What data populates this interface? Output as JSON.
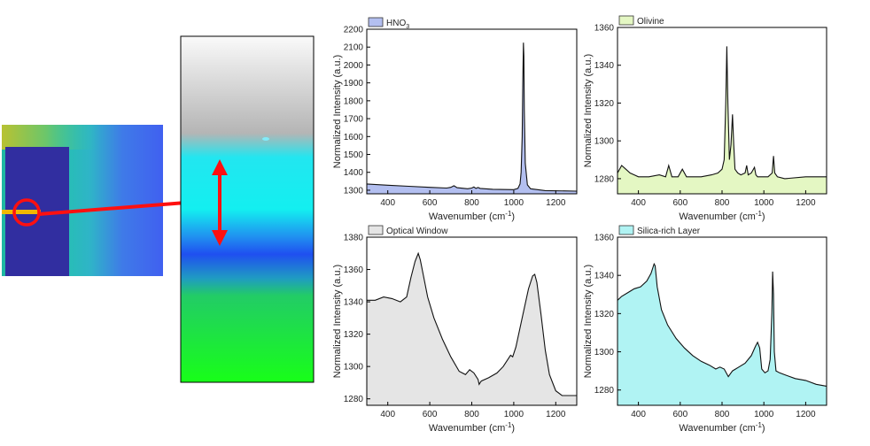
{
  "chart_data": [
    {
      "type": "area",
      "legend": "HNO3",
      "legend_main": "HNO",
      "legend_sub": "3",
      "color": "#b3bff0",
      "xlabel_main": "Wavenumber (cm",
      "xlabel_sup": "-1",
      "xlabel_end": ")",
      "ylabel": "Normalized Intensity (a.u.)",
      "xlim": [
        300,
        1300
      ],
      "ylim": [
        1280,
        2200
      ],
      "xticks": [
        400,
        600,
        800,
        1000,
        1200
      ],
      "yticks": [
        1300,
        1400,
        1500,
        1600,
        1700,
        1800,
        1900,
        2000,
        2100,
        2200
      ],
      "x": [
        300,
        400,
        500,
        600,
        680,
        700,
        715,
        730,
        780,
        800,
        810,
        820,
        830,
        840,
        900,
        1000,
        1020,
        1030,
        1035,
        1040,
        1043,
        1046,
        1048,
        1050,
        1055,
        1065,
        1080,
        1150,
        1300
      ],
      "y": [
        1335,
        1328,
        1322,
        1316,
        1312,
        1316,
        1325,
        1314,
        1308,
        1312,
        1318,
        1310,
        1315,
        1310,
        1305,
        1303,
        1310,
        1335,
        1400,
        1600,
        1900,
        2125,
        2050,
        1750,
        1450,
        1330,
        1308,
        1298,
        1295
      ]
    },
    {
      "type": "area",
      "legend": "Olivine",
      "legend_main": "Olivine",
      "legend_sub": "",
      "color": "#e4f7c3",
      "xlabel_main": "Wavenumber (cm",
      "xlabel_sup": "-1",
      "xlabel_end": ")",
      "ylabel": "Normalized Intensity (a.u.)",
      "xlim": [
        300,
        1300
      ],
      "ylim": [
        1272,
        1360
      ],
      "xticks": [
        400,
        600,
        800,
        1000,
        1200
      ],
      "yticks": [
        1280,
        1300,
        1320,
        1340,
        1360
      ],
      "x": [
        300,
        320,
        340,
        360,
        380,
        400,
        450,
        500,
        530,
        545,
        560,
        590,
        610,
        630,
        700,
        750,
        780,
        800,
        810,
        818,
        823,
        828,
        835,
        843,
        850,
        856,
        862,
        875,
        890,
        910,
        918,
        925,
        940,
        955,
        962,
        970,
        990,
        1020,
        1040,
        1046,
        1052,
        1065,
        1100,
        1200,
        1300
      ],
      "y": [
        1283,
        1287,
        1285,
        1283,
        1282,
        1281,
        1281,
        1282,
        1281,
        1287,
        1281,
        1281,
        1285,
        1281,
        1281,
        1282,
        1283,
        1285,
        1290,
        1320,
        1350,
        1320,
        1290,
        1298,
        1314,
        1298,
        1285,
        1283,
        1282,
        1283,
        1287,
        1282,
        1283,
        1286,
        1282,
        1281,
        1281,
        1281,
        1283,
        1292,
        1283,
        1281,
        1280,
        1281,
        1281
      ]
    },
    {
      "type": "area",
      "legend": "Optical Window",
      "legend_main": "Optical Window",
      "legend_sub": "",
      "color": "#e5e5e5",
      "xlabel_main": "Wavenumber (cm",
      "xlabel_sup": "-1",
      "xlabel_end": ")",
      "ylabel": "Normalized Intensity (a.u.)",
      "xlim": [
        300,
        1300
      ],
      "ylim": [
        1276,
        1380
      ],
      "xticks": [
        400,
        600,
        800,
        1000,
        1200
      ],
      "yticks": [
        1280,
        1300,
        1320,
        1340,
        1360,
        1380
      ],
      "x": [
        300,
        340,
        380,
        420,
        460,
        490,
        510,
        530,
        545,
        555,
        570,
        590,
        620,
        660,
        700,
        740,
        770,
        790,
        810,
        830,
        835,
        845,
        880,
        920,
        950,
        970,
        985,
        995,
        1010,
        1040,
        1070,
        1090,
        1100,
        1110,
        1130,
        1150,
        1170,
        1200,
        1230,
        1260,
        1300
      ],
      "y": [
        1341,
        1341,
        1343,
        1342,
        1340,
        1343,
        1355,
        1365,
        1370,
        1366,
        1356,
        1343,
        1330,
        1317,
        1306,
        1297,
        1295,
        1298,
        1296,
        1292,
        1289,
        1291,
        1293,
        1296,
        1300,
        1304,
        1307,
        1306,
        1312,
        1330,
        1348,
        1356,
        1357,
        1352,
        1332,
        1310,
        1295,
        1285,
        1282,
        1282,
        1282
      ]
    },
    {
      "type": "area",
      "legend": "Silica-rich Layer",
      "legend_main": "Silica-rich Layer",
      "legend_sub": "",
      "color": "#b0f3f3",
      "xlabel_main": "Wavenumber (cm",
      "xlabel_sup": "-1",
      "xlabel_end": ")",
      "ylabel": "Normalized Intensity (a.u.)",
      "xlim": [
        300,
        1300
      ],
      "ylim": [
        1272,
        1360
      ],
      "xticks": [
        400,
        600,
        800,
        1000,
        1200
      ],
      "yticks": [
        1280,
        1300,
        1320,
        1340,
        1360
      ],
      "x": [
        300,
        320,
        350,
        380,
        410,
        440,
        460,
        475,
        480,
        490,
        510,
        540,
        580,
        620,
        660,
        700,
        740,
        770,
        790,
        810,
        830,
        850,
        880,
        910,
        940,
        960,
        970,
        980,
        990,
        1005,
        1020,
        1030,
        1038,
        1042,
        1046,
        1050,
        1058,
        1075,
        1100,
        1150,
        1200,
        1250,
        1300
      ],
      "y": [
        1327,
        1329,
        1331,
        1333,
        1334,
        1337,
        1341,
        1346,
        1345,
        1334,
        1322,
        1314,
        1307,
        1302,
        1298,
        1295,
        1293,
        1291,
        1292,
        1291,
        1287,
        1290,
        1292,
        1294,
        1298,
        1303,
        1305,
        1302,
        1291,
        1289,
        1290,
        1296,
        1320,
        1342,
        1330,
        1300,
        1290,
        1289,
        1288,
        1286,
        1285,
        1283,
        1282
      ]
    }
  ]
}
